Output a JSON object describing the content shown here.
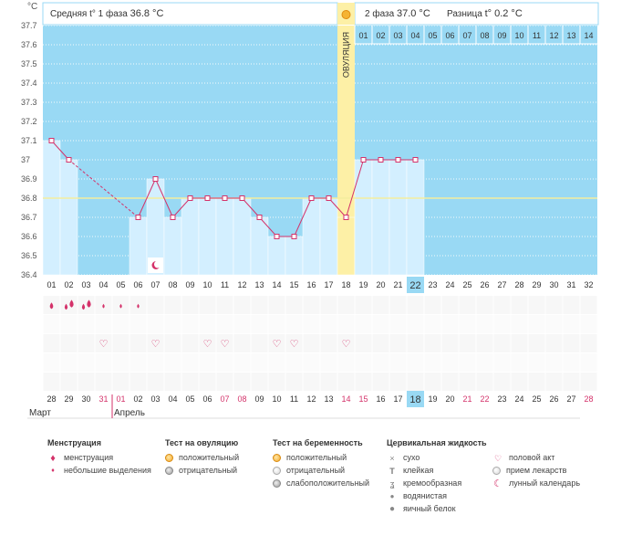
{
  "chart_data": {
    "type": "line",
    "y_unit": "°C",
    "ylim": [
      36.4,
      37.7
    ],
    "y_ticks": [
      "36.4",
      "36.5",
      "36.6",
      "36.7",
      "36.8",
      "36.9",
      "37",
      "37.1",
      "37.2",
      "37.3",
      "37.4",
      "37.5",
      "37.6",
      "37.7"
    ],
    "coverline": 36.8,
    "header": {
      "phase1_label": "Средняя t° 1 фаза",
      "phase1_value": "36.8 °C",
      "phase2_label": "2 фаза",
      "phase2_value": "37.0 °C",
      "diff_label": "Разница",
      "diff_value": "t° 0.2 °C"
    },
    "ovulation_label": "ОВУЛЯЦИЯ",
    "ovulation_day": 18,
    "current_day": 22,
    "cycle_days": [
      "01",
      "02",
      "03",
      "04",
      "05",
      "06",
      "07",
      "08",
      "09",
      "10",
      "11",
      "12",
      "13",
      "14",
      "15",
      "16",
      "17",
      "18",
      "19",
      "20",
      "21",
      "22",
      "23",
      "24",
      "25",
      "26",
      "27",
      "28",
      "29",
      "30",
      "31",
      "32"
    ],
    "post_ovulation_day_labels": [
      "01",
      "02",
      "03",
      "04",
      "05",
      "06",
      "07",
      "08",
      "09",
      "10",
      "11",
      "12",
      "13",
      "14"
    ],
    "temperatures": [
      {
        "day": 1,
        "temp": 37.1
      },
      {
        "day": 2,
        "temp": 37.0
      },
      {
        "day": 6,
        "temp": 36.7
      },
      {
        "day": 7,
        "temp": 36.9
      },
      {
        "day": 8,
        "temp": 36.7
      },
      {
        "day": 9,
        "temp": 36.8
      },
      {
        "day": 10,
        "temp": 36.8
      },
      {
        "day": 11,
        "temp": 36.8
      },
      {
        "day": 12,
        "temp": 36.8
      },
      {
        "day": 13,
        "temp": 36.7
      },
      {
        "day": 14,
        "temp": 36.6
      },
      {
        "day": 15,
        "temp": 36.6
      },
      {
        "day": 16,
        "temp": 36.8
      },
      {
        "day": 17,
        "temp": 36.8
      },
      {
        "day": 18,
        "temp": 36.7
      },
      {
        "day": 19,
        "temp": 37.0
      },
      {
        "day": 20,
        "temp": 37.0
      },
      {
        "day": 21,
        "temp": 37.0
      },
      {
        "day": 22,
        "temp": 37.0
      }
    ],
    "dashed_segment": [
      2,
      6
    ],
    "lunar_day": 7,
    "menstruation_days": [
      1,
      2,
      3
    ],
    "spotting_days": [
      4,
      5,
      6
    ],
    "intercourse_days": [
      4,
      7,
      10,
      11,
      14,
      15,
      18
    ],
    "calendar_dates": [
      "28",
      "29",
      "30",
      "31",
      "01",
      "02",
      "03",
      "04",
      "05",
      "06",
      "07",
      "08",
      "09",
      "10",
      "11",
      "12",
      "13",
      "14",
      "15",
      "16",
      "17",
      "18",
      "19",
      "20",
      "21",
      "22",
      "23",
      "24",
      "25",
      "26",
      "27",
      "28"
    ],
    "weekend_days": [
      4,
      5,
      11,
      12,
      18,
      19,
      25,
      26,
      32
    ],
    "months": [
      {
        "label": "Март",
        "start_day": 1
      },
      {
        "label": "Апрель",
        "start_day": 5
      }
    ]
  },
  "legend": {
    "menstruation": {
      "title": "Менструация",
      "items": [
        "менструация",
        "небольшие выделения"
      ]
    },
    "ovulation_test": {
      "title": "Тест на овуляцию",
      "items": [
        "положительный",
        "отрицательный"
      ]
    },
    "pregnancy_test": {
      "title": "Тест на беременность",
      "items": [
        "положительный",
        "отрицательный",
        "слабоположительный"
      ]
    },
    "cervical": {
      "title": "Цервикальная жидкость",
      "items": [
        "сухо",
        "клейкая",
        "кремообразная",
        "водянистая",
        "яичный белок"
      ]
    },
    "other": {
      "items": [
        "половой акт",
        "прием лекарств",
        "лунный календарь"
      ]
    }
  },
  "colors": {
    "plot_bg": "#99d9f4",
    "bar_fill": "#d3efff",
    "ovulation": "#fdf0a6",
    "line": "#d4326a",
    "coverline": "#f4ee9e",
    "weekend": "#d4326a",
    "current_day": "#99d9f4"
  }
}
